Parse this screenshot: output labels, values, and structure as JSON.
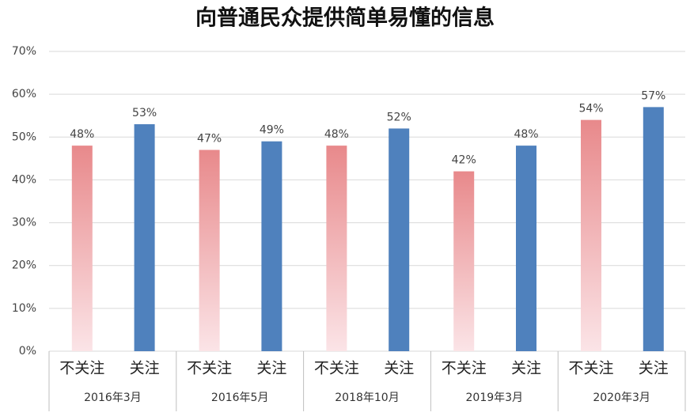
{
  "chart_data": {
    "type": "bar",
    "title": "向普通民众提供简单易懂的信息",
    "categories": [
      "2016年3月",
      "2016年5月",
      "2018年10月",
      "2019年3月",
      "2020年3月"
    ],
    "series": [
      {
        "name": "不关注",
        "color": "#e8898b",
        "values": [
          48,
          47,
          48,
          42,
          54
        ],
        "value_labels": [
          "48%",
          "47%",
          "48%",
          "42%",
          "54%"
        ]
      },
      {
        "name": "关注",
        "color": "#4f81bd",
        "values": [
          53,
          49,
          52,
          48,
          57
        ],
        "value_labels": [
          "53%",
          "49%",
          "52%",
          "48%",
          "57%"
        ]
      }
    ],
    "ylim": [
      0,
      70
    ],
    "yticks": [
      {
        "value": 0,
        "label": "0%"
      },
      {
        "value": 10,
        "label": "10%"
      },
      {
        "value": 20,
        "label": "20%"
      },
      {
        "value": 30,
        "label": "30%"
      },
      {
        "value": 40,
        "label": "40%"
      },
      {
        "value": 50,
        "label": "50%"
      },
      {
        "value": 60,
        "label": "60%"
      },
      {
        "value": 70,
        "label": "70%"
      }
    ],
    "grid": true
  }
}
